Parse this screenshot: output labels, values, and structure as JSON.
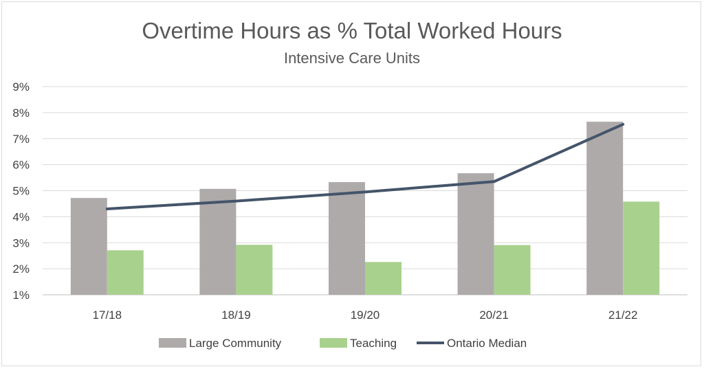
{
  "chart_data": {
    "type": "bar",
    "title": "Overtime Hours as % Total Worked Hours",
    "subtitle": "Intensive Care Units",
    "categories": [
      "17/18",
      "18/19",
      "19/20",
      "20/21",
      "21/22"
    ],
    "yticks": [
      "1%",
      "2%",
      "3%",
      "4%",
      "5%",
      "6%",
      "7%",
      "8%",
      "9%"
    ],
    "ylim": [
      1,
      9
    ],
    "grid": true,
    "legend_position": "bottom",
    "series": [
      {
        "name": "Large Community",
        "kind": "bar",
        "color": "#aeaaaa",
        "values": [
          4.72,
          5.07,
          5.33,
          5.67,
          7.65
        ]
      },
      {
        "name": "Teaching",
        "kind": "bar",
        "color": "#a9d18e",
        "values": [
          2.71,
          2.92,
          2.26,
          2.91,
          4.58
        ]
      },
      {
        "name": "Ontario Median",
        "kind": "line",
        "color": "#44546a",
        "values": [
          4.3,
          4.6,
          4.95,
          5.35,
          7.55
        ]
      }
    ]
  }
}
